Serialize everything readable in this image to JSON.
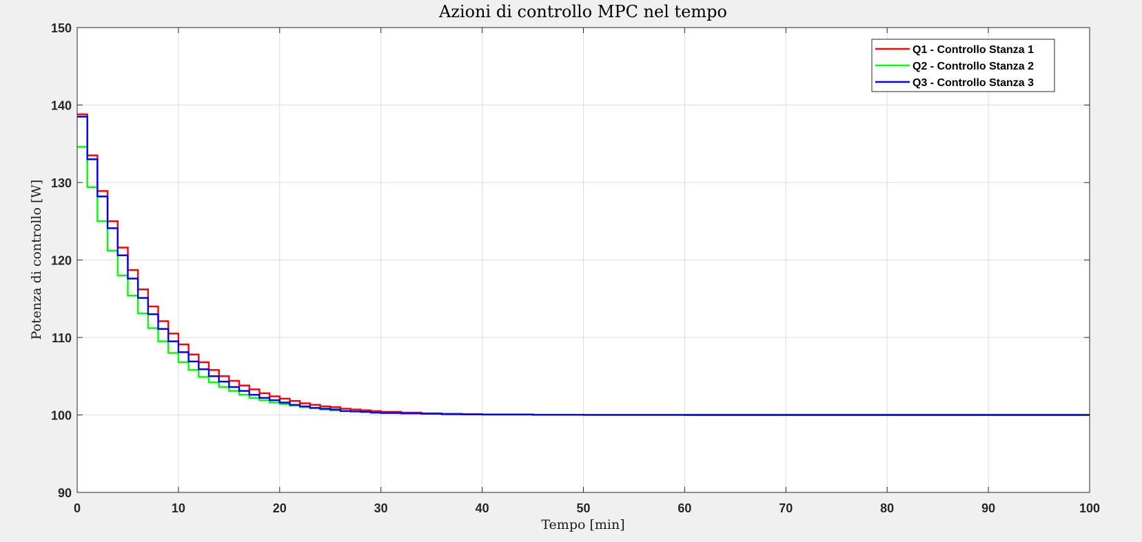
{
  "chart_data": {
    "type": "line",
    "title": "Azioni di controllo MPC nel tempo",
    "xlabel": "Tempo [min]",
    "ylabel": "Potenza di controllo [W]",
    "xlim": [
      0,
      100
    ],
    "ylim": [
      90,
      150
    ],
    "xticks": [
      0,
      10,
      20,
      30,
      40,
      50,
      60,
      70,
      80,
      90,
      100
    ],
    "yticks": [
      90,
      100,
      110,
      120,
      130,
      140,
      150
    ],
    "grid": true,
    "legend_position": "top-right",
    "step": true,
    "series": [
      {
        "name": "Q1 - Controllo Stanza 1",
        "color": "#ff0000",
        "x": [
          0,
          1,
          2,
          3,
          4,
          5,
          6,
          7,
          8,
          9,
          10,
          11,
          12,
          13,
          14,
          15,
          16,
          17,
          18,
          19,
          20,
          21,
          22,
          23,
          24,
          25,
          26,
          27,
          28,
          29,
          30,
          32,
          34,
          36,
          38,
          40,
          45,
          50,
          60,
          100
        ],
        "y": [
          138.8,
          133.5,
          128.9,
          125.0,
          121.6,
          118.7,
          116.2,
          114.0,
          112.1,
          110.5,
          109.1,
          107.8,
          106.8,
          105.8,
          105.0,
          104.4,
          103.8,
          103.3,
          102.8,
          102.4,
          102.1,
          101.8,
          101.5,
          101.3,
          101.1,
          101.0,
          100.8,
          100.7,
          100.6,
          100.5,
          100.4,
          100.3,
          100.2,
          100.15,
          100.1,
          100.07,
          100.03,
          100.01,
          100.0,
          100.0
        ]
      },
      {
        "name": "Q2 - Controllo Stanza 2",
        "color": "#00ff00",
        "x": [
          0,
          1,
          2,
          3,
          4,
          5,
          6,
          7,
          8,
          9,
          10,
          11,
          12,
          13,
          14,
          15,
          16,
          17,
          18,
          19,
          20,
          21,
          22,
          23,
          24,
          25,
          26,
          27,
          28,
          29,
          30,
          32,
          34,
          36,
          38,
          40,
          45,
          50,
          60,
          100
        ],
        "y": [
          134.6,
          129.4,
          125.0,
          121.2,
          118.0,
          115.4,
          113.1,
          111.2,
          109.5,
          108.0,
          106.8,
          105.8,
          104.9,
          104.2,
          103.6,
          103.1,
          102.6,
          102.2,
          101.9,
          101.6,
          101.4,
          101.2,
          101.0,
          100.9,
          100.7,
          100.6,
          100.5,
          100.45,
          100.4,
          100.3,
          100.25,
          100.2,
          100.15,
          100.1,
          100.07,
          100.05,
          100.02,
          100.01,
          100.0,
          100.0
        ]
      },
      {
        "name": "Q3 - Controllo Stanza 3",
        "color": "#0000ff",
        "x": [
          0,
          1,
          2,
          3,
          4,
          5,
          6,
          7,
          8,
          9,
          10,
          11,
          12,
          13,
          14,
          15,
          16,
          17,
          18,
          19,
          20,
          21,
          22,
          23,
          24,
          25,
          26,
          27,
          28,
          29,
          30,
          32,
          34,
          36,
          38,
          40,
          45,
          50,
          60,
          100
        ],
        "y": [
          138.5,
          133.0,
          128.2,
          124.1,
          120.6,
          117.6,
          115.1,
          113.0,
          111.1,
          109.5,
          108.1,
          106.9,
          105.9,
          105.0,
          104.3,
          103.6,
          103.1,
          102.6,
          102.2,
          101.9,
          101.6,
          101.3,
          101.1,
          100.9,
          100.8,
          100.7,
          100.5,
          100.45,
          100.4,
          100.3,
          100.25,
          100.2,
          100.15,
          100.1,
          100.07,
          100.05,
          100.02,
          100.01,
          100.0,
          100.0
        ]
      }
    ]
  }
}
